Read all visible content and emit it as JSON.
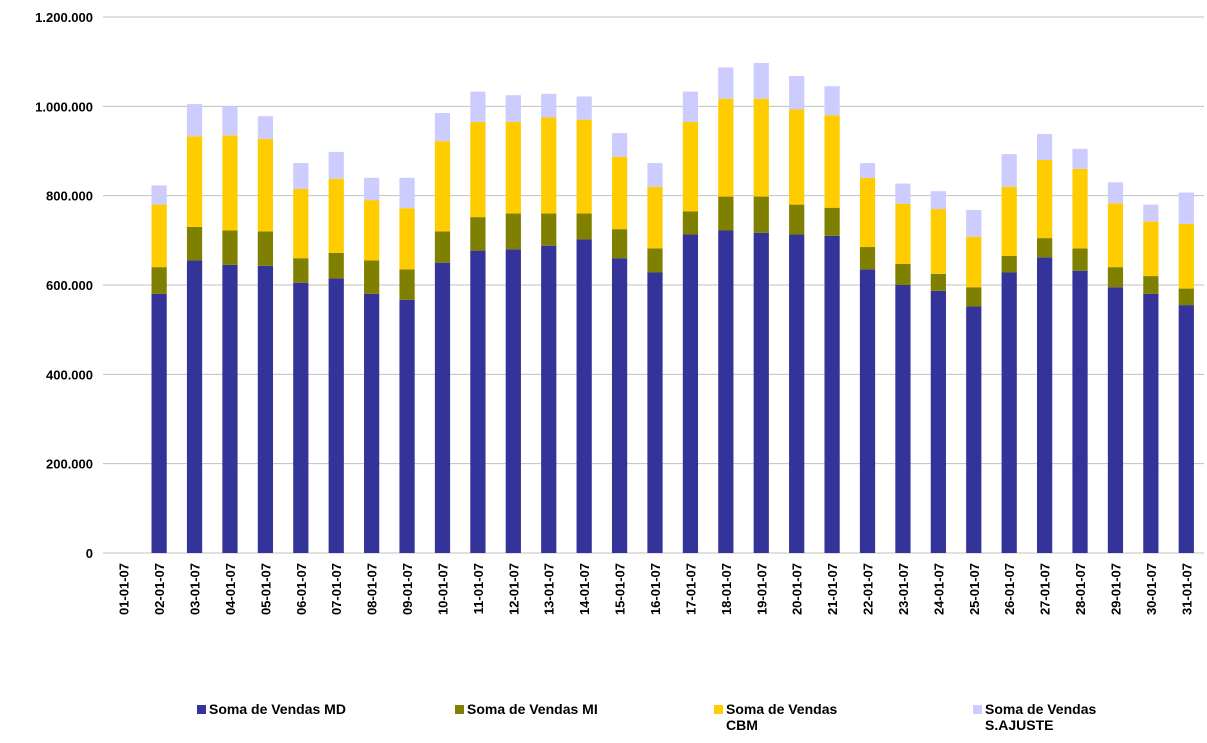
{
  "chart_data": {
    "type": "stacked-bar",
    "categories": [
      "01-01-07",
      "02-01-07",
      "03-01-07",
      "04-01-07",
      "05-01-07",
      "06-01-07",
      "07-01-07",
      "08-01-07",
      "09-01-07",
      "10-01-07",
      "11-01-07",
      "12-01-07",
      "13-01-07",
      "14-01-07",
      "15-01-07",
      "16-01-07",
      "17-01-07",
      "18-01-07",
      "19-01-07",
      "20-01-07",
      "21-01-07",
      "22-01-07",
      "23-01-07",
      "24-01-07",
      "25-01-07",
      "26-01-07",
      "27-01-07",
      "28-01-07",
      "29-01-07",
      "30-01-07",
      "31-01-07"
    ],
    "series": [
      {
        "name": "Soma de Vendas MD",
        "color": "#333399",
        "values": [
          null,
          580000,
          655000,
          645000,
          643000,
          605000,
          615000,
          580000,
          567000,
          650000,
          677000,
          680000,
          688000,
          702000,
          660000,
          628000,
          713000,
          722000,
          717000,
          713000,
          710000,
          635000,
          600000,
          587000,
          552000,
          628000,
          662000,
          632000,
          595000,
          580000,
          555000
        ]
      },
      {
        "name": "Soma de Vendas MI",
        "color": "#808000",
        "values": [
          null,
          60000,
          75000,
          77000,
          77000,
          55000,
          57000,
          75000,
          68000,
          70000,
          75000,
          80000,
          72000,
          58000,
          65000,
          54000,
          52000,
          76000,
          81000,
          67000,
          63000,
          50000,
          47000,
          38000,
          43000,
          37000,
          43000,
          50000,
          45000,
          40000,
          37000
        ]
      },
      {
        "name": "Soma de Vendas CBM",
        "color": "#ffcc00",
        "values": [
          null,
          140000,
          203000,
          213000,
          207000,
          155000,
          166000,
          135000,
          137000,
          202000,
          213000,
          205000,
          215000,
          210000,
          162000,
          138000,
          200000,
          219000,
          219000,
          213000,
          207000,
          155000,
          135000,
          145000,
          113000,
          155000,
          175000,
          178000,
          143000,
          122000,
          145000
        ]
      },
      {
        "name": "Soma de Vendas S.AJUSTE",
        "color": "#ccccff",
        "values": [
          null,
          43000,
          72000,
          65000,
          51000,
          58000,
          60000,
          50000,
          68000,
          63000,
          68000,
          60000,
          53000,
          52000,
          53000,
          53000,
          68000,
          70000,
          80000,
          75000,
          65000,
          33000,
          45000,
          40000,
          60000,
          73000,
          58000,
          45000,
          47000,
          38000,
          70000
        ]
      }
    ],
    "ylim": [
      0,
      1200000
    ],
    "yticks": [
      0,
      {
        "value": 200000,
        "label": "200.000"
      },
      {
        "value": 400000,
        "label": "400.000"
      },
      {
        "value": 600000,
        "label": "600.000"
      },
      {
        "value": 800000,
        "label": "800.000"
      },
      {
        "value": 1000000,
        "label": "1.000.000"
      },
      {
        "value": 1200000,
        "label": "1.200.000"
      }
    ],
    "grid": true
  }
}
